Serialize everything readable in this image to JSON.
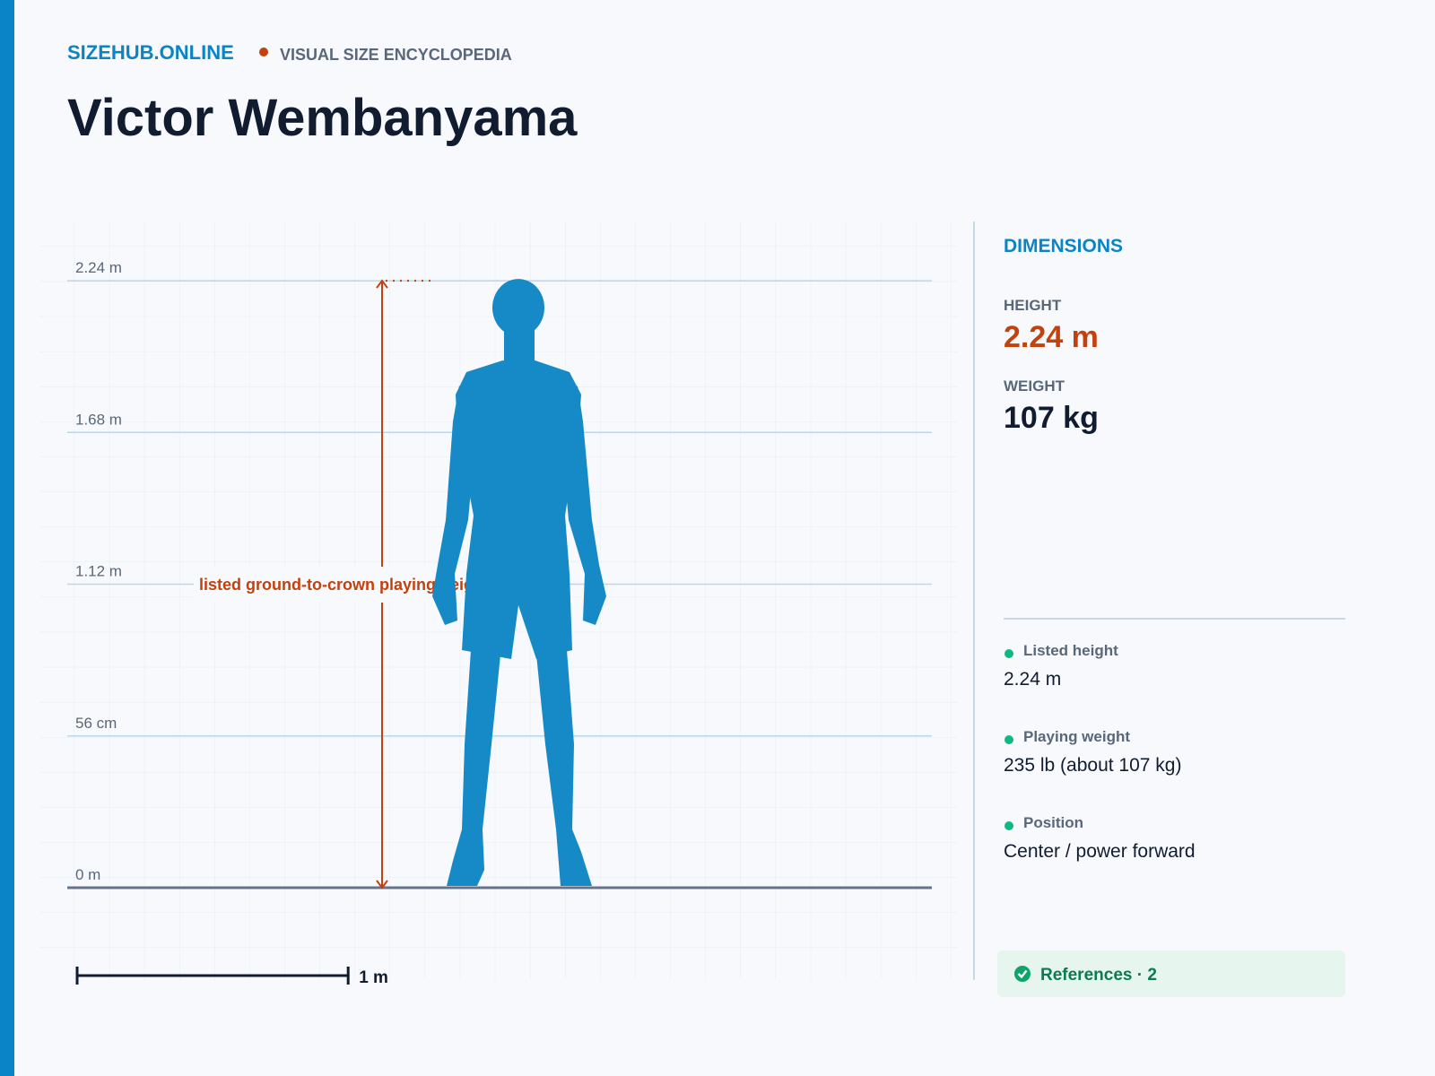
{
  "header": {
    "site": "SIZEHUB.ONLINE",
    "tagline": "VISUAL SIZE ENCYCLOPEDIA",
    "title": "Victor Wembanyama"
  },
  "scale": {
    "ticks": [
      {
        "value": 2.24,
        "label": "2.24 m"
      },
      {
        "value": 1.68,
        "label": "1.68 m"
      },
      {
        "value": 1.12,
        "label": "1.12 m"
      },
      {
        "value": 0.56,
        "label": "56 cm"
      },
      {
        "value": 0,
        "label": "0 m"
      }
    ],
    "annotation": "listed ground-to-crown playing height",
    "bar": {
      "value": 1,
      "label": "1 m"
    }
  },
  "sidebar": {
    "heading": "DIMENSIONS",
    "height": {
      "name": "HEIGHT",
      "value": 2.24,
      "label": "2.24 m"
    },
    "weight": {
      "name": "WEIGHT",
      "label": "107 kg"
    },
    "facts": [
      {
        "name": "Listed height",
        "text": "2.24 m"
      },
      {
        "name": "Playing weight",
        "text": "235 lb (about 107 kg)"
      },
      {
        "name": "Position",
        "text": "Center / power forward"
      }
    ],
    "references": "References · 2"
  }
}
